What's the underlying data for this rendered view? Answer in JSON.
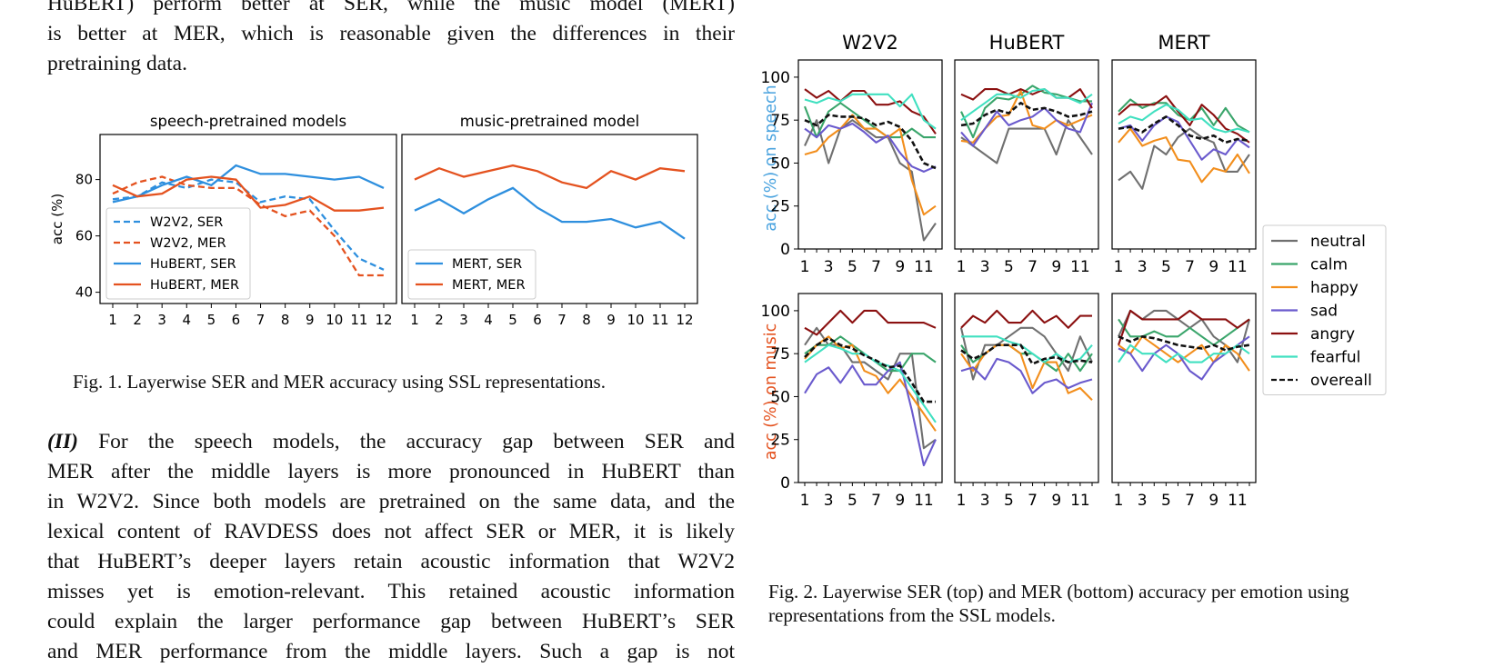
{
  "paper": {
    "intro_lines": [
      "HuBERT) perform better at SER, while the music model (MERT)",
      "is better at MER, which is reasonable given the differences in their",
      "pretraining data."
    ],
    "body_lead": "(II)",
    "body_lines": [
      " For the speech models, the accuracy gap between SER and",
      "MER after the middle layers is more pronounced in HuBERT than",
      "in W2V2. Since both models are pretrained on the same data, and the",
      "lexical content of RAVDESS does not affect SER or MER, it is likely",
      "that HuBERT’s deeper layers retain acoustic information that W2V2",
      "misses yet is emotion-relevant. This retained acoustic information",
      "could explain the larger performance gap between HuBERT’s SER",
      "and MER performance from the middle layers. Such a gap is not"
    ],
    "fig1_caption": "Fig. 1.  Layerwise SER and MER accuracy using SSL representations.",
    "fig2_caption_lines": [
      "Fig. 2.  Layerwise SER (top) and MER (bottom) accuracy per emotion using",
      "representations from the SSL models."
    ]
  },
  "chart_data": [
    {
      "id": "fig1",
      "type": "line",
      "ylabel": "acc (%)",
      "ylim": [
        36,
        96
      ],
      "yticks": [
        40,
        60,
        80
      ],
      "x": [
        1,
        2,
        3,
        4,
        5,
        6,
        7,
        8,
        9,
        10,
        11,
        12
      ],
      "colors": {
        "SER": "#2e8fde",
        "MER": "#e4521f"
      },
      "panels": [
        {
          "title": "speech-pretrained models",
          "legend_position": "lower-left",
          "series": [
            {
              "name": "W2V2, SER",
              "style": "dashed",
              "color": "#2e8fde",
              "values": [
                73,
                74,
                79,
                77,
                80,
                79,
                72,
                74,
                73,
                62,
                52,
                48
              ]
            },
            {
              "name": "W2V2, MER",
              "style": "dashed",
              "color": "#e4521f",
              "values": [
                75,
                79,
                81,
                78,
                77,
                77,
                71,
                67,
                69,
                60,
                46,
                46
              ]
            },
            {
              "name": "HuBERT, SER",
              "style": "solid",
              "color": "#2e8fde",
              "values": [
                72,
                74,
                78,
                81,
                78,
                85,
                82,
                82,
                81,
                80,
                81,
                77
              ]
            },
            {
              "name": "HuBERT, MER",
              "style": "solid",
              "color": "#e4521f",
              "values": [
                78,
                74,
                75,
                80,
                81,
                80,
                70,
                71,
                74,
                69,
                69,
                70
              ]
            }
          ]
        },
        {
          "title": "music-pretrained model",
          "legend_position": "lower-left",
          "series": [
            {
              "name": "MERT, SER",
              "style": "solid",
              "color": "#2e8fde",
              "values": [
                69,
                73,
                68,
                73,
                77,
                70,
                65,
                65,
                66,
                63,
                65,
                59
              ]
            },
            {
              "name": "MERT, MER",
              "style": "solid",
              "color": "#e4521f",
              "values": [
                80,
                84,
                81,
                83,
                85,
                83,
                79,
                77,
                83,
                80,
                84,
                83
              ]
            }
          ]
        }
      ]
    },
    {
      "id": "fig2",
      "type": "line",
      "columns": [
        "W2V2",
        "HuBERT",
        "MERT"
      ],
      "row_labels": [
        {
          "text": "acc (%) on speech",
          "color": "#4aa3df"
        },
        {
          "text": "acc (%) on music",
          "color": "#e4521f"
        }
      ],
      "ylim": [
        0,
        110
      ],
      "yticks": [
        0,
        25,
        50,
        75,
        100
      ],
      "x": [
        1,
        2,
        3,
        4,
        5,
        6,
        7,
        8,
        9,
        10,
        11,
        12
      ],
      "xtick_labels": [
        "1",
        "3",
        "5",
        "7",
        "9",
        "11"
      ],
      "legend": [
        {
          "name": "neutral",
          "color": "#707070",
          "style": "solid"
        },
        {
          "name": "calm",
          "color": "#3aa56b",
          "style": "solid"
        },
        {
          "name": "happy",
          "color": "#f28e1c",
          "style": "solid"
        },
        {
          "name": "sad",
          "color": "#6a5acd",
          "style": "solid"
        },
        {
          "name": "angry",
          "color": "#8b1010",
          "style": "solid"
        },
        {
          "name": "fearful",
          "color": "#40e0c0",
          "style": "solid"
        },
        {
          "name": "overeall",
          "color": "#111111",
          "style": "dashed"
        }
      ],
      "panels": [
        [
          {
            "neutral": [
              60,
              75,
              50,
              70,
              75,
              70,
              65,
              65,
              50,
              45,
              5,
              15
            ],
            "calm": [
              83,
              65,
              80,
              85,
              80,
              75,
              70,
              65,
              65,
              70,
              65,
              65
            ],
            "happy": [
              55,
              57,
              65,
              70,
              78,
              70,
              70,
              65,
              70,
              40,
              20,
              25
            ],
            "sad": [
              70,
              65,
              72,
              70,
              73,
              68,
              62,
              66,
              56,
              48,
              45,
              48
            ],
            "angry": [
              93,
              88,
              92,
              86,
              92,
              92,
              84,
              84,
              86,
              80,
              77,
              67
            ],
            "fearful": [
              87,
              85,
              88,
              86,
              90,
              90,
              90,
              90,
              83,
              90,
              75,
              70
            ],
            "overeall": [
              75,
              72,
              78,
              77,
              77,
              76,
              72,
              74,
              71,
              63,
              50,
              47
            ]
          },
          {
            "neutral": [
              65,
              60,
              55,
              50,
              70,
              70,
              70,
              70,
              55,
              75,
              65,
              55
            ],
            "calm": [
              80,
              65,
              82,
              88,
              87,
              90,
              95,
              91,
              90,
              88,
              86,
              86
            ],
            "happy": [
              63,
              62,
              70,
              77,
              78,
              92,
              72,
              70,
              75,
              72,
              75,
              78
            ],
            "sad": [
              68,
              60,
              70,
              80,
              72,
              75,
              77,
              82,
              75,
              70,
              68,
              85
            ],
            "angry": [
              90,
              87,
              93,
              93,
              90,
              93,
              90,
              93,
              88,
              88,
              93,
              82
            ],
            "fearful": [
              75,
              80,
              85,
              90,
              90,
              88,
              92,
              93,
              88,
              88,
              85,
              90
            ],
            "overeall": [
              72,
              73,
              78,
              81,
              79,
              85,
              81,
              82,
              80,
              77,
              78,
              80
            ]
          },
          {
            "neutral": [
              40,
              45,
              35,
              60,
              55,
              65,
              70,
              65,
              62,
              45,
              45,
              55
            ],
            "calm": [
              80,
              87,
              82,
              85,
              85,
              78,
              75,
              82,
              72,
              82,
              72,
              68
            ],
            "happy": [
              62,
              70,
              60,
              63,
              65,
              52,
              51,
              39,
              47,
              45,
              55,
              44
            ],
            "sad": [
              70,
              72,
              63,
              72,
              77,
              74,
              63,
              52,
              58,
              55,
              64,
              59
            ],
            "angry": [
              78,
              84,
              84,
              84,
              89,
              80,
              72,
              84,
              78,
              70,
              67,
              62
            ],
            "fearful": [
              73,
              77,
              75,
              80,
              84,
              81,
              75,
              76,
              70,
              68,
              70,
              68
            ],
            "overeall": [
              70,
              71,
              68,
              73,
              77,
              72,
              66,
              64,
              66,
              62,
              64,
              63
            ]
          }
        ],
        [
          {
            "neutral": [
              80,
              90,
              80,
              80,
              70,
              70,
              65,
              60,
              75,
              75,
              20,
              25
            ],
            "calm": [
              75,
              80,
              80,
              85,
              80,
              75,
              70,
              65,
              65,
              75,
              75,
              70
            ],
            "happy": [
              72,
              80,
              85,
              78,
              80,
              65,
              62,
              52,
              60,
              50,
              40,
              30
            ],
            "sad": [
              52,
              63,
              67,
              58,
              68,
              57,
              57,
              65,
              70,
              42,
              10,
              25
            ],
            "angry": [
              90,
              86,
              93,
              100,
              93,
              100,
              100,
              93,
              93,
              93,
              93,
              90
            ],
            "fearful": [
              70,
              75,
              80,
              78,
              75,
              75,
              70,
              68,
              65,
              55,
              45,
              35
            ],
            "overeall": [
              73,
              80,
              84,
              80,
              78,
              74,
              71,
              67,
              68,
              58,
              47,
              47
            ]
          },
          {
            "neutral": [
              90,
              60,
              80,
              80,
              85,
              90,
              90,
              85,
              75,
              65,
              85,
              70
            ],
            "calm": [
              80,
              70,
              75,
              80,
              80,
              75,
              75,
              70,
              65,
              75,
              65,
              75
            ],
            "happy": [
              75,
              65,
              75,
              80,
              80,
              75,
              55,
              70,
              70,
              52,
              55,
              48
            ],
            "sad": [
              65,
              67,
              60,
              72,
              70,
              65,
              52,
              58,
              60,
              55,
              58,
              60
            ],
            "angry": [
              90,
              97,
              93,
              100,
              93,
              93,
              100,
              93,
              97,
              90,
              97,
              97
            ],
            "fearful": [
              85,
              85,
              85,
              85,
              82,
              80,
              75,
              70,
              75,
              70,
              72,
              80
            ],
            "overeall": [
              77,
              72,
              75,
              80,
              80,
              80,
              69,
              72,
              73,
              70,
              71,
              70
            ]
          },
          {
            "neutral": [
              85,
              100,
              95,
              100,
              100,
              95,
              90,
              95,
              85,
              80,
              70,
              95
            ],
            "calm": [
              95,
              85,
              85,
              88,
              85,
              85,
              90,
              85,
              80,
              85,
              90,
              95
            ],
            "happy": [
              80,
              75,
              85,
              80,
              75,
              70,
              75,
              80,
              70,
              80,
              75,
              65
            ],
            "sad": [
              78,
              75,
              65,
              75,
              80,
              75,
              65,
              60,
              70,
              75,
              80,
              85
            ],
            "angry": [
              80,
              100,
              95,
              95,
              95,
              95,
              100,
              95,
              95,
              95,
              90,
              95
            ],
            "fearful": [
              70,
              80,
              75,
              75,
              70,
              75,
              70,
              70,
              75,
              75,
              80,
              75
            ],
            "overeall": [
              85,
              82,
              85,
              84,
              82,
              80,
              79,
              78,
              80,
              77,
              79,
              80
            ]
          }
        ]
      ]
    }
  ]
}
